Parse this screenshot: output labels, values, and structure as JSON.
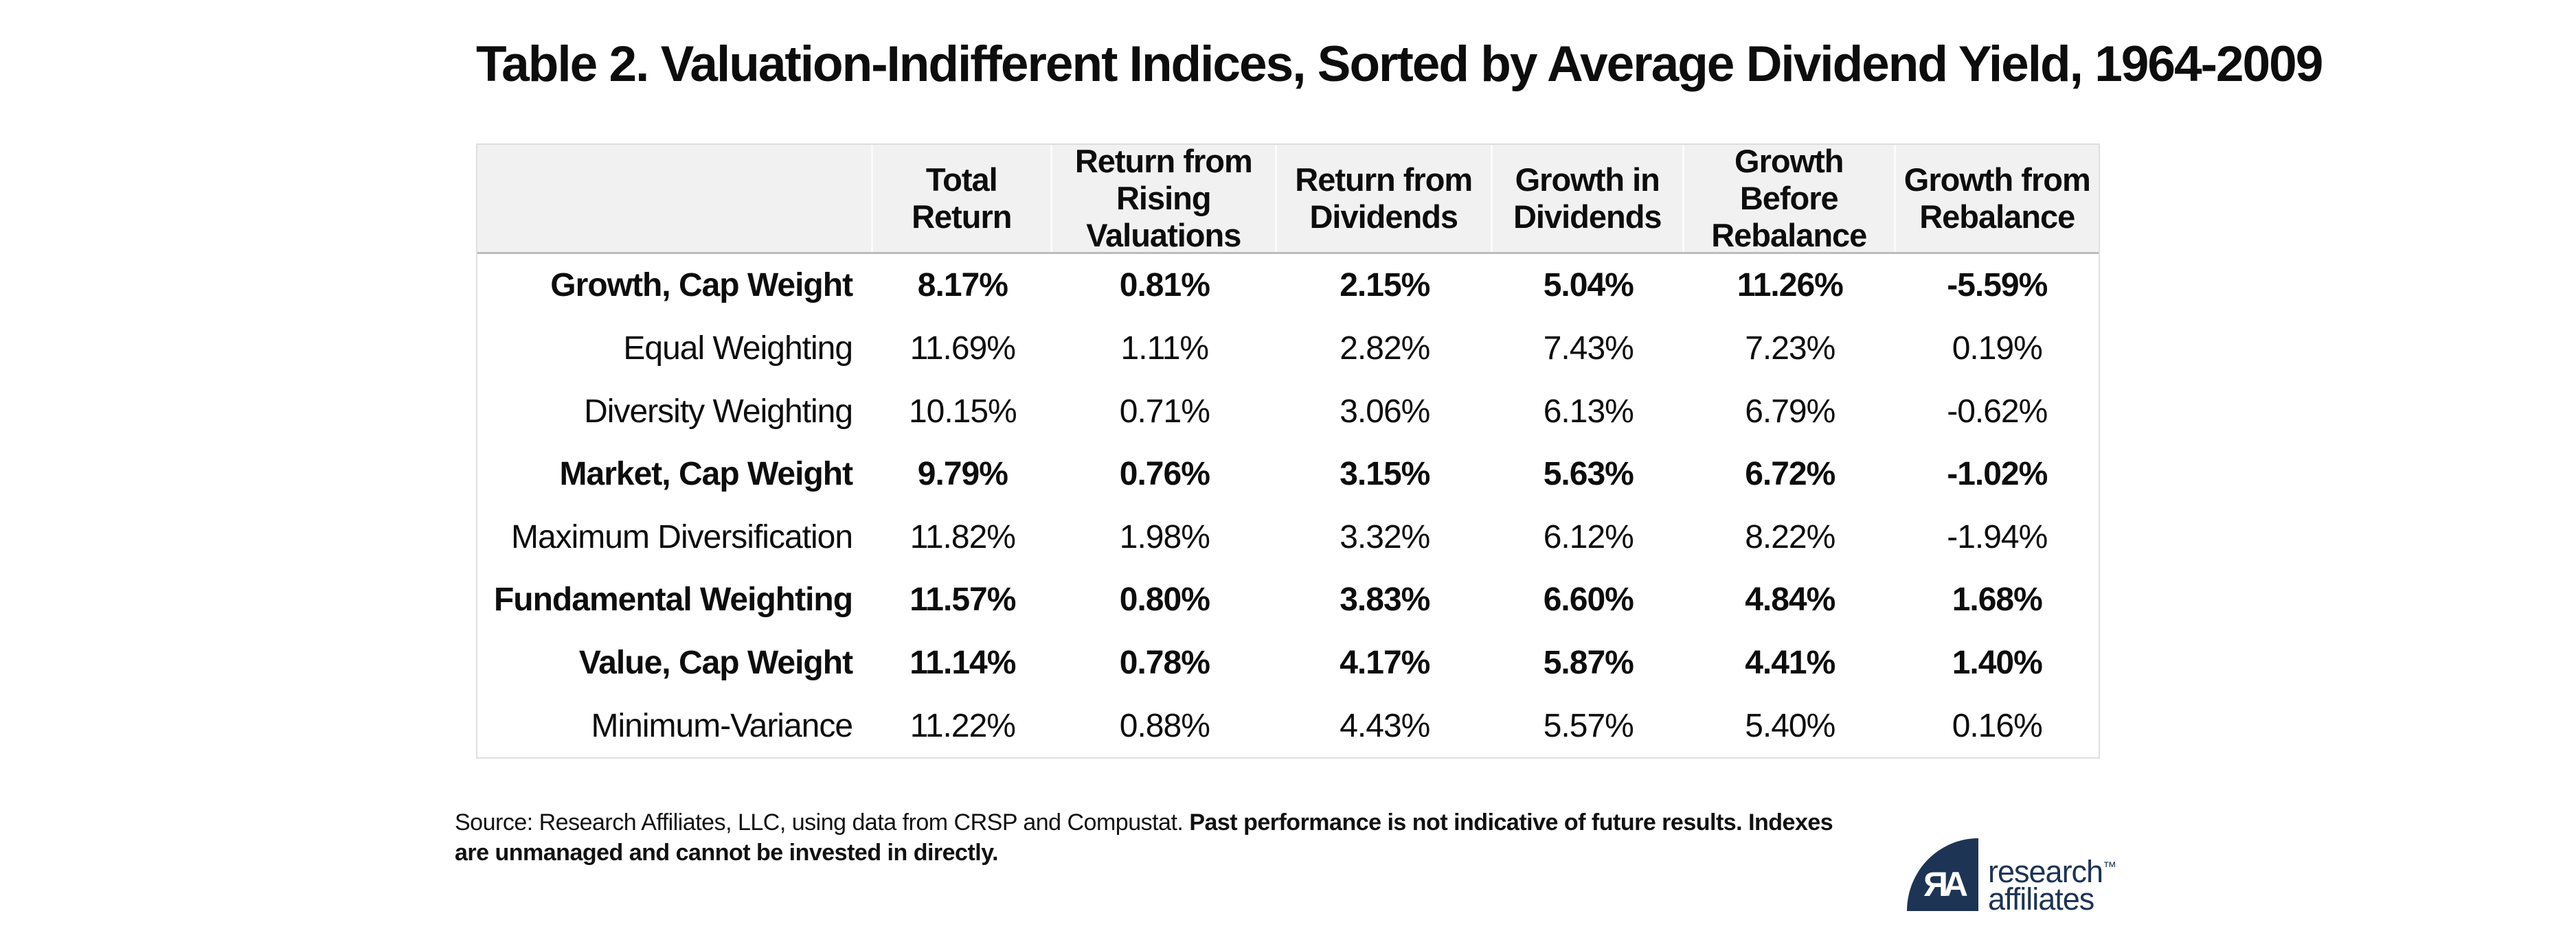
{
  "title": "Table 2. Valuation-Indifferent Indices, Sorted by Average Dividend Yield, 1964-2009",
  "chart_data": {
    "type": "table",
    "title": "Table 2. Valuation-Indifferent Indices, Sorted by Average Dividend Yield, 1964-2009",
    "columns": [
      "",
      "Total\nReturn",
      "Return from\nRising Valuations",
      "Return from\nDividends",
      "Growth in\nDividends",
      "Growth Before\nRebalance",
      "Growth from\nRebalance"
    ],
    "rows": [
      {
        "label": "Growth, Cap Weight",
        "bold": true,
        "values": [
          "8.17%",
          "0.81%",
          "2.15%",
          "5.04%",
          "11.26%",
          "-5.59%"
        ]
      },
      {
        "label": "Equal Weighting",
        "bold": false,
        "values": [
          "11.69%",
          "1.11%",
          "2.82%",
          "7.43%",
          "7.23%",
          "0.19%"
        ]
      },
      {
        "label": "Diversity Weighting",
        "bold": false,
        "values": [
          "10.15%",
          "0.71%",
          "3.06%",
          "6.13%",
          "6.79%",
          "-0.62%"
        ]
      },
      {
        "label": "Market, Cap Weight",
        "bold": true,
        "values": [
          "9.79%",
          "0.76%",
          "3.15%",
          "5.63%",
          "6.72%",
          "-1.02%"
        ]
      },
      {
        "label": "Maximum Diversification",
        "bold": false,
        "values": [
          "11.82%",
          "1.98%",
          "3.32%",
          "6.12%",
          "8.22%",
          "-1.94%"
        ]
      },
      {
        "label": "Fundamental Weighting",
        "bold": true,
        "values": [
          "11.57%",
          "0.80%",
          "3.83%",
          "6.60%",
          "4.84%",
          "1.68%"
        ]
      },
      {
        "label": "Value, Cap Weight",
        "bold": true,
        "values": [
          "11.14%",
          "0.78%",
          "4.17%",
          "5.87%",
          "4.41%",
          "1.40%"
        ]
      },
      {
        "label": "Minimum-Variance",
        "bold": false,
        "values": [
          "11.22%",
          "0.88%",
          "4.43%",
          "5.57%",
          "5.40%",
          "0.16%"
        ]
      }
    ],
    "layout": {
      "header_background": "#f1f1f2",
      "grid": "outer-border-only",
      "value_alignment": "center"
    }
  },
  "footer": {
    "line1_regular": "Source: Research Affiliates, LLC, using data from CRSP and Compustat. ",
    "line1_bold": "Past performance is not indicative of future results. Indexes",
    "line2_bold": "are unmanaged and cannot be invested in directly."
  },
  "logo": {
    "monogram": "ЯA",
    "brand_line1": "research",
    "trademark": "™",
    "brand_line2": "affiliates"
  },
  "colors": {
    "brand_navy": "#1d3454",
    "header_background": "#f1f1f2",
    "table_border": "#dedede",
    "header_divider": "#bcbcbc",
    "text": "#0d0d0d"
  }
}
